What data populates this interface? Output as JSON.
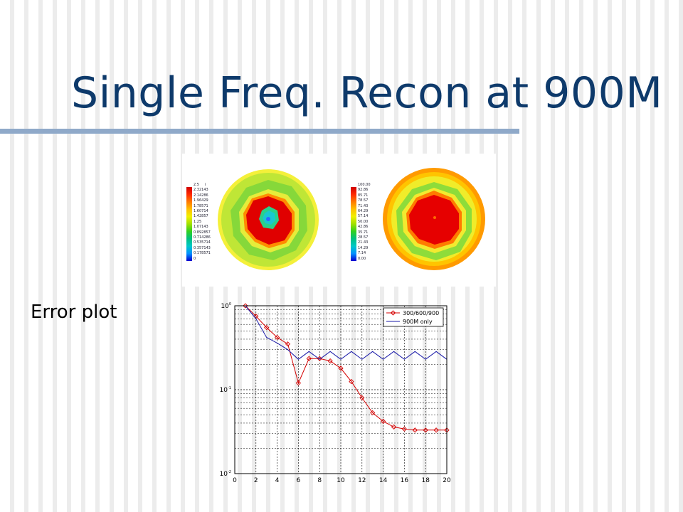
{
  "slide": {
    "title": "Single Freq. Recon at 900M",
    "error_label": "Error plot"
  },
  "colors": {
    "title": "#0e3a6b",
    "rule": "#8fa9c9",
    "series_a": "#d40000",
    "series_b": "#1a1aa8"
  },
  "recon_left": {
    "colorbar_unit": "i",
    "colorbar_labels": [
      "2.5",
      "2.32143",
      "2.14286",
      "1.96429",
      "1.78571",
      "1.60714",
      "1.42857",
      "1.25",
      "1.07143",
      "0.892857",
      "0.714286",
      "0.535714",
      "0.357143",
      "0.178571",
      "0"
    ]
  },
  "recon_right": {
    "colorbar_labels": [
      "100.00",
      "92.86",
      "85.71",
      "78.57",
      "71.43",
      "64.29",
      "57.14",
      "50.00",
      "42.86",
      "35.71",
      "28.57",
      "21.43",
      "14.29",
      "7.14",
      "0.00"
    ]
  },
  "chart_data": {
    "type": "line",
    "title": "",
    "xlabel": "",
    "ylabel": "",
    "y_scale": "log",
    "xlim": [
      0,
      20
    ],
    "ylim": [
      0.01,
      1
    ],
    "x_ticks": [
      "0",
      "2",
      "4",
      "6",
      "8",
      "10",
      "12",
      "14",
      "16",
      "18",
      "20"
    ],
    "y_ticks": [
      {
        "value": 1,
        "base": "10",
        "exp": "0"
      },
      {
        "value": 0.1,
        "base": "10",
        "exp": "-1"
      },
      {
        "value": 0.01,
        "base": "10",
        "exp": "-2"
      }
    ],
    "grid": true,
    "legend_position": "top-right",
    "series": [
      {
        "name": "300/600/900",
        "color": "#d40000",
        "marker": "diamond",
        "x": [
          1,
          2,
          3,
          4,
          5,
          6,
          7,
          8,
          9,
          10,
          11,
          12,
          13,
          14,
          15,
          16,
          17,
          18,
          19,
          20
        ],
        "y": [
          1.0,
          0.75,
          0.55,
          0.42,
          0.35,
          0.12,
          0.235,
          0.235,
          0.22,
          0.18,
          0.125,
          0.08,
          0.053,
          0.042,
          0.036,
          0.034,
          0.033,
          0.033,
          0.033,
          0.033
        ]
      },
      {
        "name": "900M only",
        "color": "#1a1aa8",
        "marker": "none",
        "x": [
          1,
          2,
          3,
          4,
          5,
          6,
          7,
          8,
          9,
          10,
          11,
          12,
          13,
          14,
          15,
          16,
          17,
          18,
          19,
          20
        ],
        "y": [
          1.0,
          0.7,
          0.42,
          0.36,
          0.3,
          0.23,
          0.285,
          0.23,
          0.285,
          0.23,
          0.285,
          0.23,
          0.285,
          0.23,
          0.285,
          0.23,
          0.285,
          0.23,
          0.285,
          0.23
        ]
      }
    ]
  }
}
